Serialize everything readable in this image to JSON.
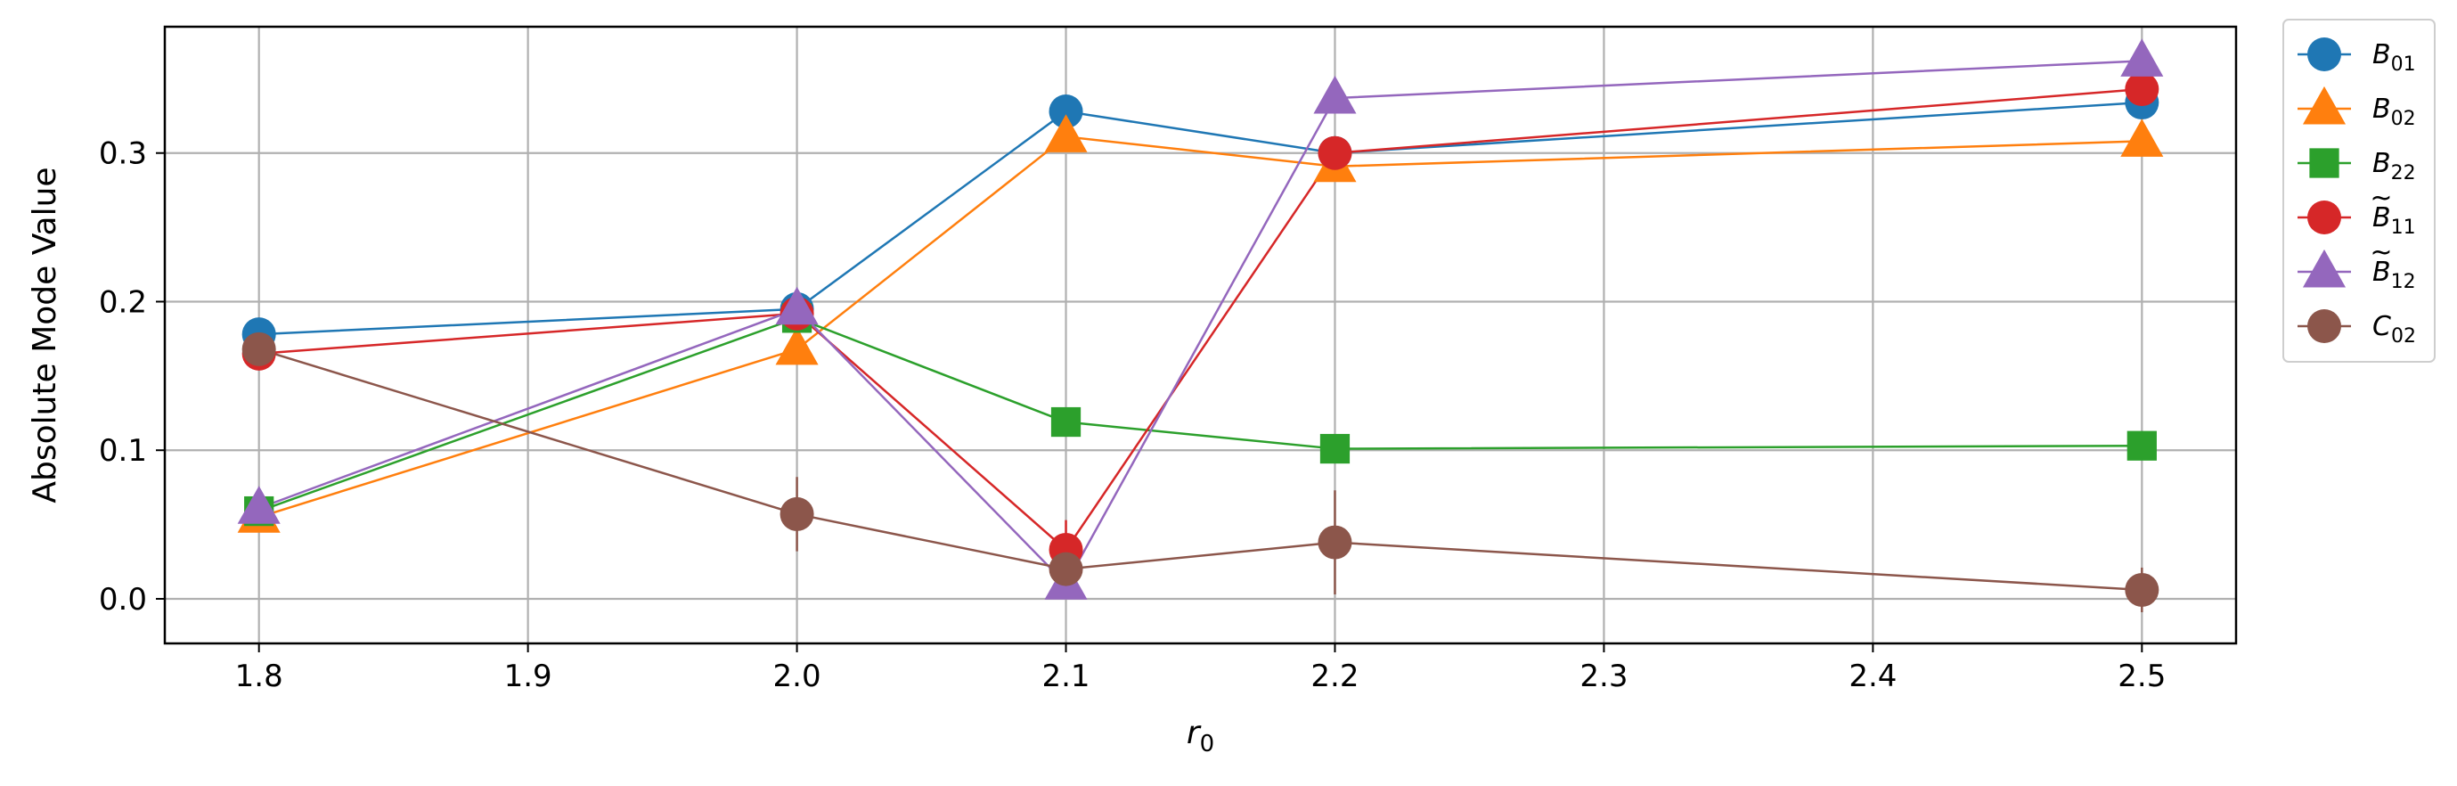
{
  "chart_data": {
    "type": "line",
    "title": "",
    "xlabel_base": "r",
    "xlabel_sub": "0",
    "ylabel": "Absolute Mode Value",
    "xlim": [
      1.765,
      2.535
    ],
    "ylim": [
      -0.03,
      0.385
    ],
    "xticks": [
      1.8,
      1.9,
      2.0,
      2.1,
      2.2,
      2.3,
      2.4,
      2.5
    ],
    "xtick_labels": [
      "1.8",
      "1.9",
      "2.0",
      "2.1",
      "2.2",
      "2.3",
      "2.4",
      "2.5"
    ],
    "yticks": [
      0.0,
      0.1,
      0.2,
      0.3
    ],
    "ytick_labels": [
      "0.0",
      "0.1",
      "0.2",
      "0.3"
    ],
    "grid": true,
    "legend_position": "outside-top-right",
    "x": [
      1.8,
      2.0,
      2.1,
      2.2,
      2.5
    ],
    "series": [
      {
        "name_base": "B",
        "name_sub": "01",
        "tilde": false,
        "marker": "circle",
        "color": "#1f77b4",
        "values": [
          0.178,
          0.195,
          0.328,
          0.3,
          0.334
        ],
        "errors": [
          0,
          0,
          0,
          0,
          0
        ]
      },
      {
        "name_base": "B",
        "name_sub": "02",
        "tilde": false,
        "marker": "triangle",
        "color": "#ff7f0e",
        "values": [
          0.055,
          0.168,
          0.311,
          0.291,
          0.308
        ],
        "errors": [
          0,
          0,
          0,
          0,
          0
        ]
      },
      {
        "name_base": "B",
        "name_sub": "22",
        "tilde": false,
        "marker": "square",
        "color": "#2ca02c",
        "values": [
          0.059,
          0.189,
          0.119,
          0.101,
          0.103
        ],
        "errors": [
          0,
          0,
          0,
          0,
          0
        ]
      },
      {
        "name_base": "B",
        "name_sub": "11",
        "tilde": true,
        "marker": "circle",
        "color": "#d62728",
        "values": [
          0.165,
          0.192,
          0.033,
          0.3,
          0.343
        ],
        "errors": [
          0,
          0,
          0.02,
          0,
          0
        ]
      },
      {
        "name_base": "B",
        "name_sub": "12",
        "tilde": true,
        "marker": "triangle",
        "color": "#9467bd",
        "values": [
          0.061,
          0.195,
          0.01,
          0.337,
          0.362
        ],
        "errors": [
          0,
          0,
          0,
          0,
          0
        ]
      },
      {
        "name_base": "C",
        "name_sub": "02",
        "tilde": false,
        "marker": "circle",
        "color": "#8c564b",
        "values": [
          0.168,
          0.057,
          0.02,
          0.038,
          0.006
        ],
        "errors": [
          0,
          0.025,
          0.01,
          0.035,
          0.015
        ]
      }
    ]
  }
}
